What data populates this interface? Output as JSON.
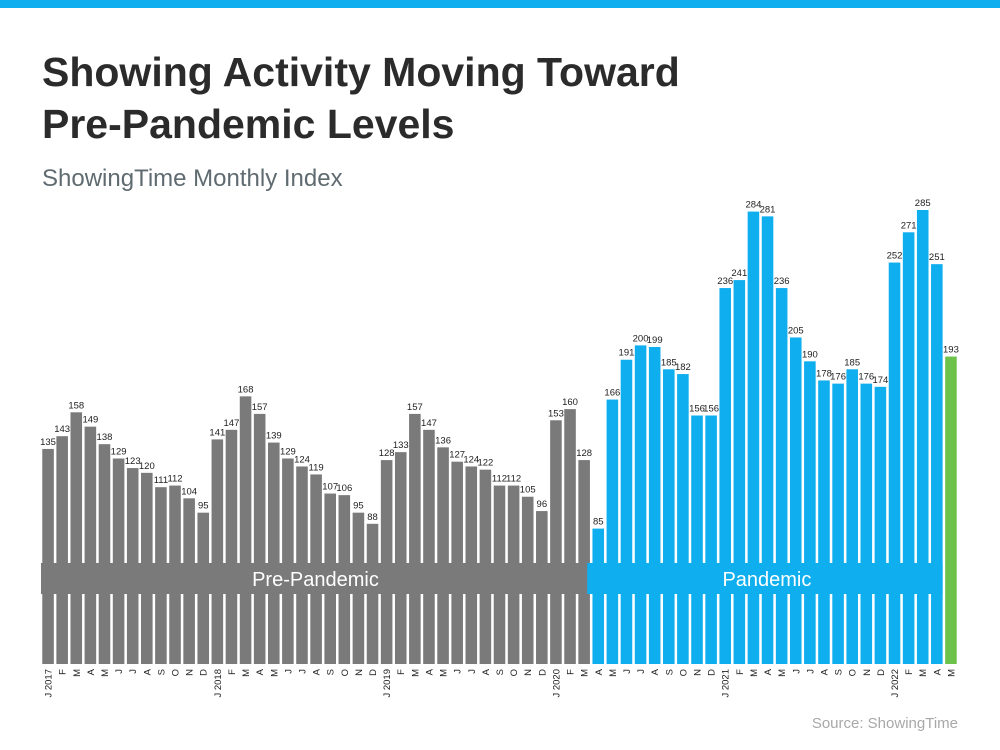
{
  "chart_data": {
    "type": "bar",
    "title": "Showing Activity Moving Toward Pre-Pandemic Levels",
    "subtitle": "ShowingTime Monthly Index",
    "source": "Source: ShowingTime",
    "categories": [
      "J 2017",
      "F",
      "M",
      "A",
      "M",
      "J",
      "J",
      "A",
      "S",
      "O",
      "N",
      "D",
      "J 2018",
      "F",
      "M",
      "A",
      "M",
      "J",
      "J",
      "A",
      "S",
      "O",
      "N",
      "D",
      "J 2019",
      "F",
      "M",
      "A",
      "M",
      "J",
      "J",
      "A",
      "S",
      "O",
      "N",
      "D",
      "J 2020",
      "F",
      "M",
      "A",
      "M",
      "J",
      "J",
      "A",
      "S",
      "O",
      "N",
      "D",
      "J 2021",
      "F",
      "M",
      "A",
      "M",
      "J",
      "J",
      "A",
      "S",
      "O",
      "N",
      "D",
      "J 2022",
      "F",
      "M",
      "A",
      "M"
    ],
    "values": [
      135,
      143,
      158,
      149,
      138,
      129,
      123,
      120,
      111,
      112,
      104,
      95,
      141,
      147,
      168,
      157,
      139,
      129,
      124,
      119,
      107,
      106,
      95,
      88,
      128,
      133,
      157,
      147,
      136,
      127,
      124,
      122,
      112,
      112,
      105,
      96,
      153,
      160,
      128,
      85,
      166,
      191,
      200,
      199,
      185,
      182,
      156,
      156,
      236,
      241,
      284,
      281,
      236,
      205,
      190,
      178,
      176,
      185,
      176,
      174,
      252,
      271,
      285,
      251,
      193
    ],
    "colors": [
      "#7a7a7a",
      "#7a7a7a",
      "#7a7a7a",
      "#7a7a7a",
      "#7a7a7a",
      "#7a7a7a",
      "#7a7a7a",
      "#7a7a7a",
      "#7a7a7a",
      "#7a7a7a",
      "#7a7a7a",
      "#7a7a7a",
      "#7a7a7a",
      "#7a7a7a",
      "#7a7a7a",
      "#7a7a7a",
      "#7a7a7a",
      "#7a7a7a",
      "#7a7a7a",
      "#7a7a7a",
      "#7a7a7a",
      "#7a7a7a",
      "#7a7a7a",
      "#7a7a7a",
      "#7a7a7a",
      "#7a7a7a",
      "#7a7a7a",
      "#7a7a7a",
      "#7a7a7a",
      "#7a7a7a",
      "#7a7a7a",
      "#7a7a7a",
      "#7a7a7a",
      "#7a7a7a",
      "#7a7a7a",
      "#7a7a7a",
      "#7a7a7a",
      "#7a7a7a",
      "#7a7a7a",
      "#0eaeef",
      "#0eaeef",
      "#0eaeef",
      "#0eaeef",
      "#0eaeef",
      "#0eaeef",
      "#0eaeef",
      "#0eaeef",
      "#0eaeef",
      "#0eaeef",
      "#0eaeef",
      "#0eaeef",
      "#0eaeef",
      "#0eaeef",
      "#0eaeef",
      "#0eaeef",
      "#0eaeef",
      "#0eaeef",
      "#0eaeef",
      "#0eaeef",
      "#0eaeef",
      "#0eaeef",
      "#0eaeef",
      "#0eaeef",
      "#0eaeef",
      "#6cc24a"
    ],
    "annotations": [
      {
        "text": "Pre-Pandemic",
        "color": "#7a7a7a"
      },
      {
        "text": "Pandemic",
        "color": "#0eaeef"
      }
    ]
  }
}
